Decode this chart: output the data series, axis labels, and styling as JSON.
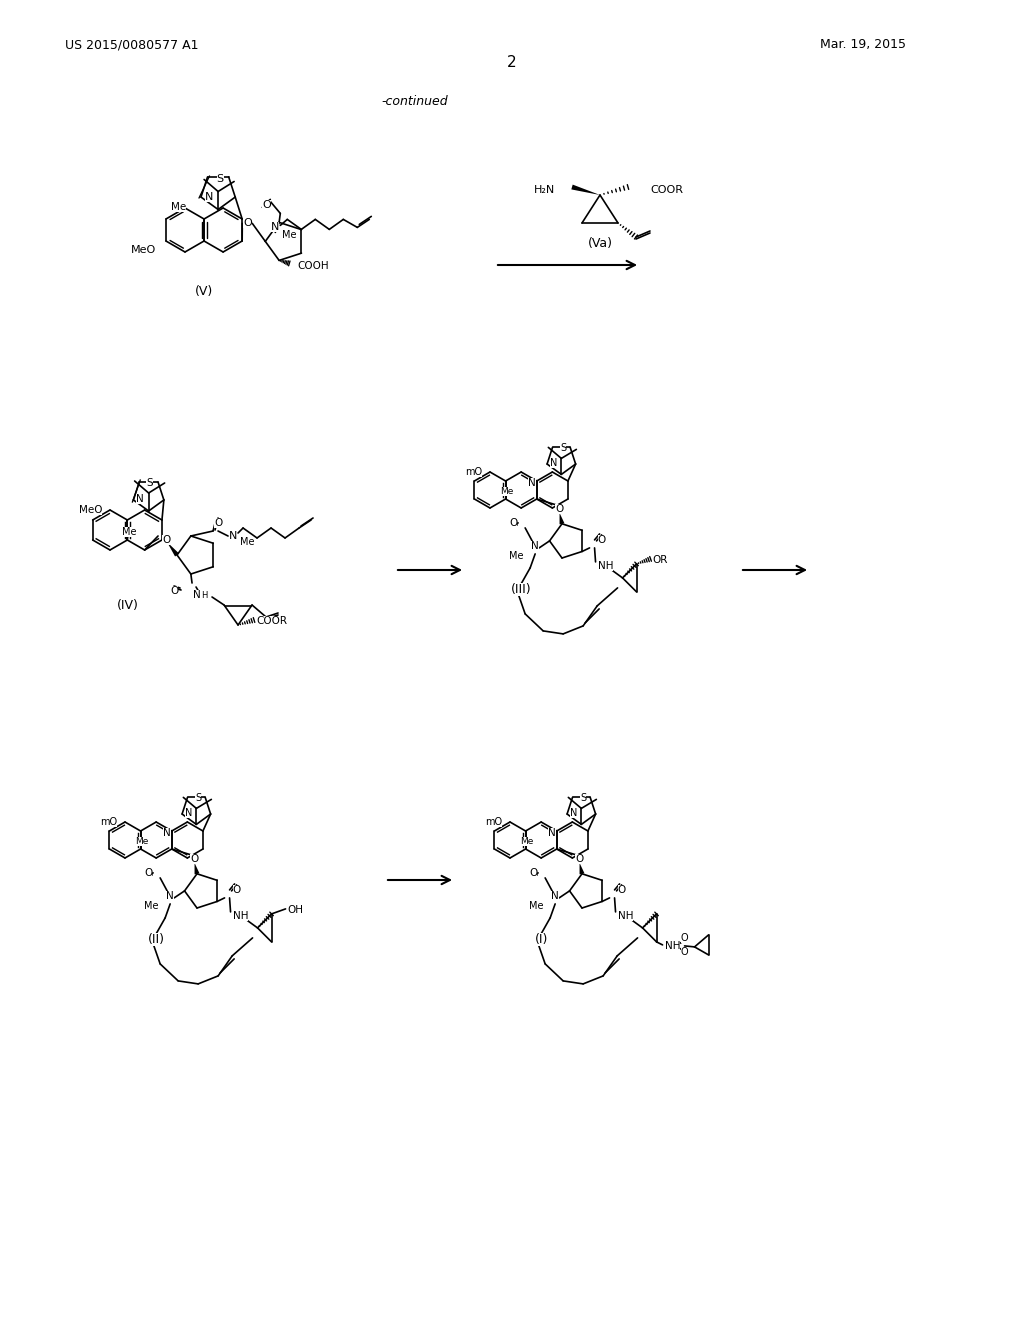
{
  "page_number": "2",
  "patent_number": "US 2015/0080577 A1",
  "patent_date": "Mar. 19, 2015",
  "continued_label": "-continued",
  "background_color": "#ffffff",
  "text_color": "#000000",
  "figsize": [
    10.24,
    13.2
  ],
  "dpi": 100
}
